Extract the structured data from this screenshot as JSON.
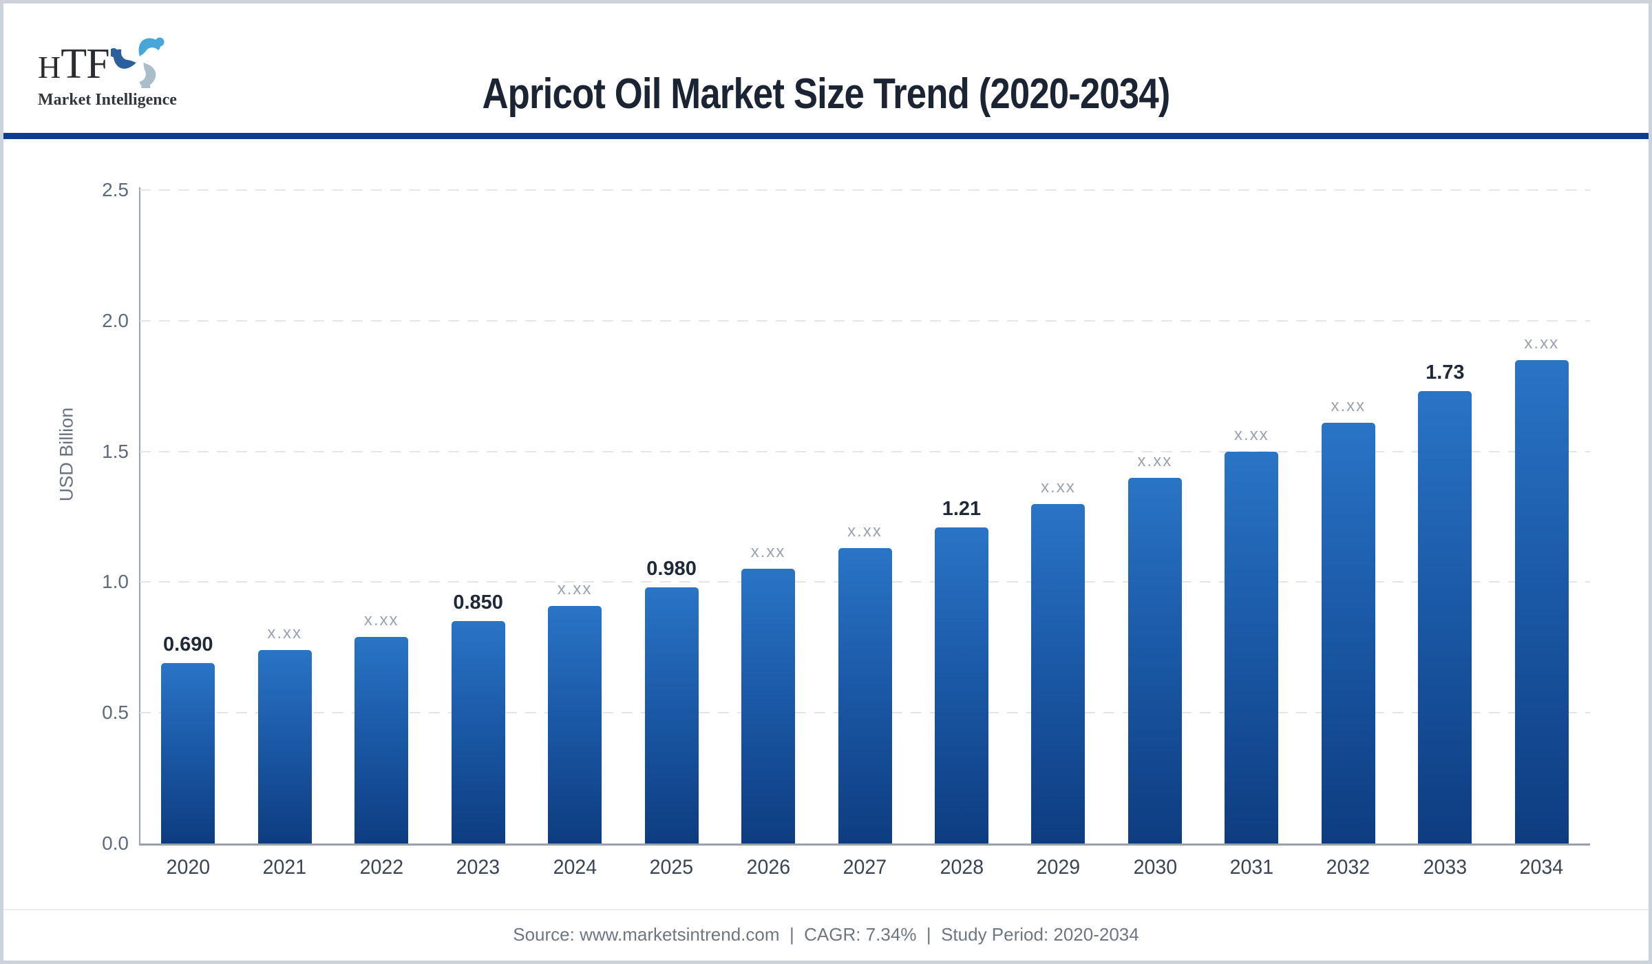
{
  "header": {
    "logo": {
      "h": "H",
      "tf": "TF",
      "subtitle": "Market Intelligence"
    },
    "title": "Apricot Oil Market Size Trend (2020-2034)"
  },
  "chart_data": {
    "type": "bar",
    "title": "Apricot Oil Market Size Trend (2020-2034)",
    "xlabel": "",
    "ylabel": "USD Billion",
    "ylim": [
      0,
      2.5
    ],
    "yticks": [
      "0.0",
      "0.5",
      "1.0",
      "1.5",
      "2.0",
      "2.5"
    ],
    "grid": "horizontal-dashed",
    "legend_position": "none",
    "categories": [
      "2020",
      "2021",
      "2022",
      "2023",
      "2024",
      "2025",
      "2026",
      "2027",
      "2028",
      "2029",
      "2030",
      "2031",
      "2032",
      "2033",
      "2034"
    ],
    "values": [
      0.69,
      0.74,
      0.79,
      0.85,
      0.91,
      0.98,
      1.05,
      1.13,
      1.21,
      1.3,
      1.4,
      1.5,
      1.61,
      1.73,
      1.85
    ],
    "bar_labels": [
      "0.690",
      "x.xx",
      "x.xx",
      "0.850",
      "x.xx",
      "0.980",
      "x.xx",
      "x.xx",
      "1.21",
      "x.xx",
      "x.xx",
      "x.xx",
      "x.xx",
      "1.73",
      "x.xx"
    ],
    "labeled_years": [
      "2020",
      "2023",
      "2025",
      "2028",
      "2033"
    ]
  },
  "colors": {
    "bar_gradient_top": "#2a74c6",
    "bar_gradient_bottom": "#0e3c80",
    "header_divider": "#0b3d91",
    "value_label_strong": "#1f2937",
    "value_label_muted": "#9aa2ae",
    "axis_line": "#98a0ac",
    "gridline": "#e2e5ea",
    "tick_label": "#5f6a7a",
    "title_text": "#1b2433",
    "logo_light_blue": "#47a7d8",
    "logo_gray_blue": "#a9bdcb",
    "logo_dark_blue": "#2b5f9e"
  },
  "footer": {
    "text": "Source: www.marketsintrend.com  |  CAGR: 7.34%  |  Study Period: 2020-2034"
  }
}
